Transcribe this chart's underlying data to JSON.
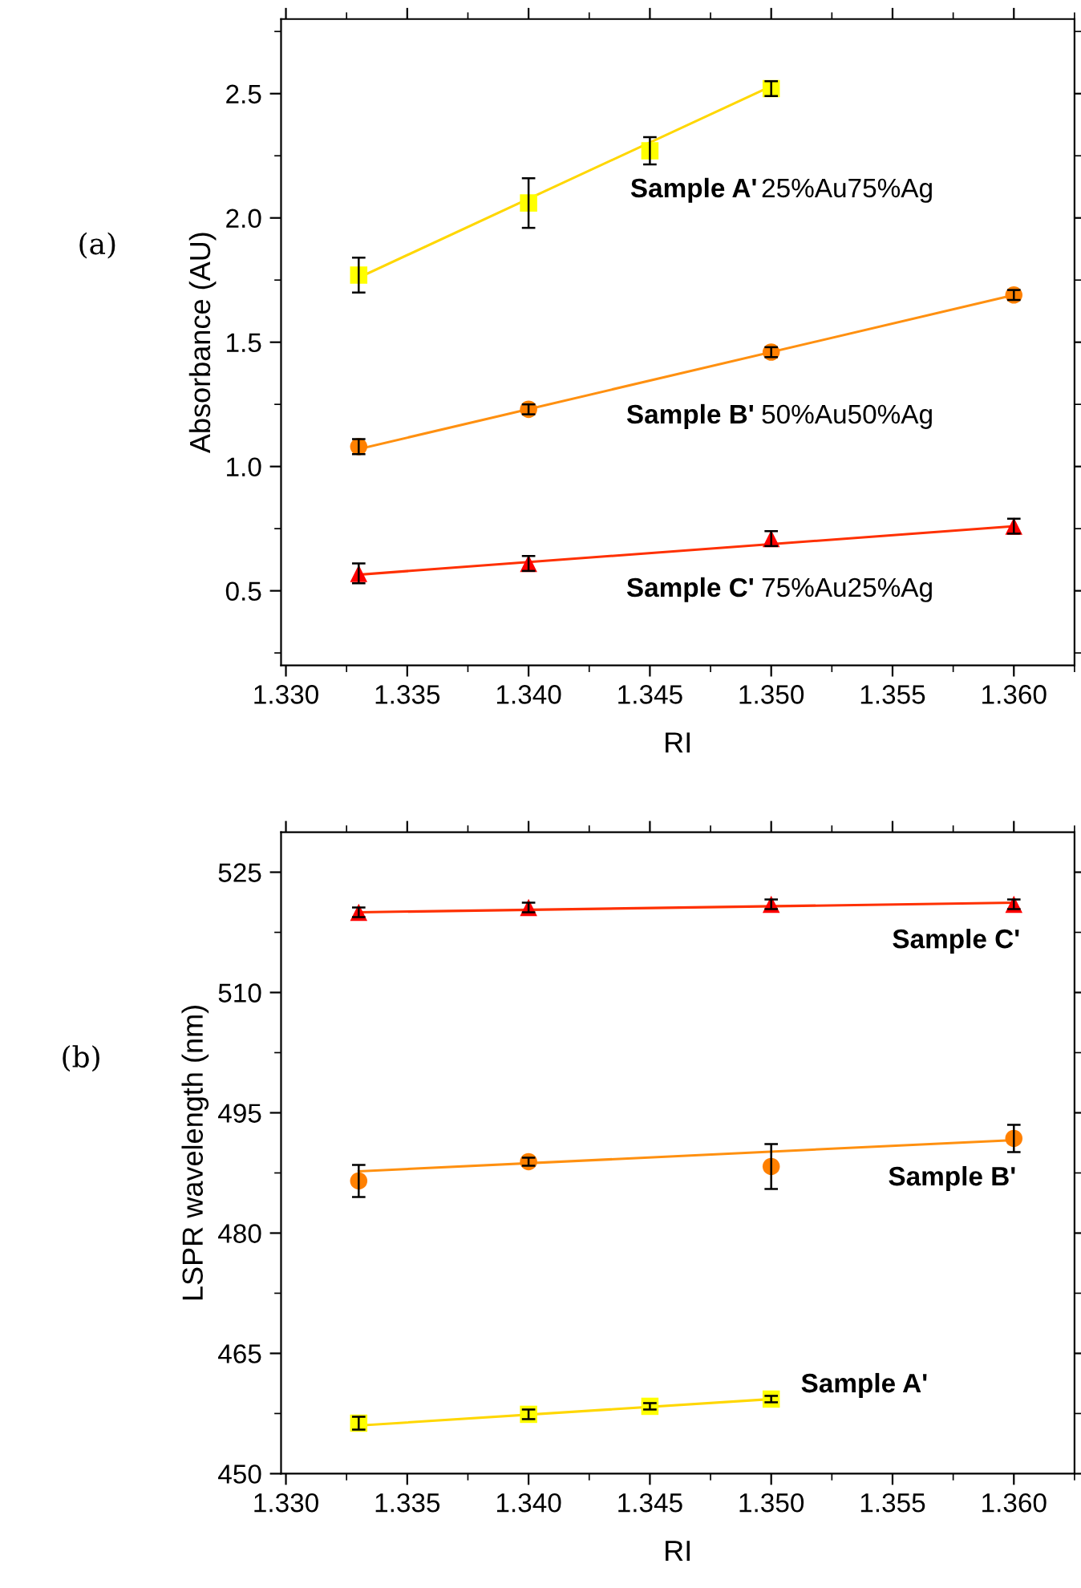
{
  "chart_data": [
    {
      "type": "scatter",
      "xlabel": "RI",
      "ylabel": "Absorbance (AU)",
      "xlim": [
        1.3298,
        1.3625
      ],
      "ylim": [
        0.2,
        2.8
      ],
      "xticks": [
        {
          "value": 1.33,
          "label": "1.330"
        },
        {
          "value": 1.335,
          "label": "1.335"
        },
        {
          "value": 1.34,
          "label": "1.340"
        },
        {
          "value": 1.345,
          "label": "1.345"
        },
        {
          "value": 1.35,
          "label": "1.350"
        },
        {
          "value": 1.355,
          "label": "1.355"
        },
        {
          "value": 1.36,
          "label": "1.360"
        }
      ],
      "yticks": [
        0.5,
        {
          "value": 1,
          "label": "1.0"
        },
        1.5,
        {
          "value": 2,
          "label": "2.0"
        },
        2.5
      ],
      "grid": false,
      "legend": false,
      "annotations": [
        "(a)",
        "25%Au75%Ag",
        "50%Au50%Ag",
        "75%Au25%Ag"
      ],
      "series": [
        {
          "name": "Sample A'",
          "marker": "square",
          "color": "#ffff00",
          "x": [
            1.333,
            1.34,
            1.345,
            1.35
          ],
          "values": [
            1.77,
            2.06,
            2.27,
            2.52
          ],
          "errors": [
            0.07,
            0.1,
            0.055,
            0.03
          ]
        },
        {
          "name": "Sample B'",
          "marker": "circle",
          "color": "#ff8000",
          "x": [
            1.333,
            1.34,
            1.35,
            1.36
          ],
          "values": [
            1.08,
            1.23,
            1.46,
            1.69
          ],
          "errors": [
            0.03,
            0.02,
            0.02,
            0.02
          ]
        },
        {
          "name": "Sample C'",
          "marker": "triangle",
          "color": "#ff0000",
          "x": [
            1.333,
            1.34,
            1.35,
            1.36
          ],
          "values": [
            0.57,
            0.61,
            0.71,
            0.76
          ],
          "errors": [
            0.04,
            0.03,
            0.03,
            0.03
          ]
        },
        {
          "type": "line",
          "color": "#ffd700",
          "x": [
            1.333,
            1.35
          ],
          "values": [
            1.76,
            2.53
          ]
        },
        {
          "type": "line",
          "color": "#ff9010",
          "x": [
            1.333,
            1.36
          ],
          "values": [
            1.07,
            1.69
          ]
        },
        {
          "type": "line",
          "color": "#ff3000",
          "x": [
            1.333,
            1.36
          ],
          "values": [
            0.565,
            0.76
          ]
        }
      ]
    },
    {
      "type": "scatter",
      "xlabel": "RI",
      "ylabel": "LSPR wavelength (nm)",
      "xlim": [
        1.3298,
        1.3625
      ],
      "ylim": [
        450,
        530
      ],
      "xticks": [
        {
          "value": 1.33,
          "label": "1.330"
        },
        {
          "value": 1.335,
          "label": "1.335"
        },
        {
          "value": 1.34,
          "label": "1.340"
        },
        {
          "value": 1.345,
          "label": "1.345"
        },
        {
          "value": 1.35,
          "label": "1.350"
        },
        {
          "value": 1.355,
          "label": "1.355"
        },
        {
          "value": 1.36,
          "label": "1.360"
        }
      ],
      "yticks": [
        450,
        465,
        480,
        495,
        510,
        525
      ],
      "grid": false,
      "legend": false,
      "annotations": [
        "(b)"
      ],
      "series": [
        {
          "name": "Sample C'",
          "marker": "triangle",
          "color": "#ff0000",
          "x": [
            1.333,
            1.34,
            1.35,
            1.36
          ],
          "values": [
            520.0,
            520.6,
            521.0,
            521.0
          ],
          "errors": [
            0.6,
            0.6,
            0.6,
            0.6
          ]
        },
        {
          "name": "Sample B'",
          "marker": "circle",
          "color": "#ff8000",
          "x": [
            1.333,
            1.34,
            1.35,
            1.36
          ],
          "values": [
            486.5,
            488.9,
            488.3,
            491.8
          ],
          "errors": [
            2.0,
            0.5,
            2.8,
            1.7
          ]
        },
        {
          "name": "Sample A'",
          "marker": "square",
          "color": "#ffff00",
          "x": [
            1.333,
            1.34,
            1.345,
            1.35
          ],
          "values": [
            456.3,
            457.4,
            458.4,
            459.3
          ],
          "errors": [
            0.8,
            0.6,
            0.4,
            0.4
          ]
        },
        {
          "type": "line",
          "color": "#ff3000",
          "x": [
            1.333,
            1.36
          ],
          "values": [
            520.0,
            521.2
          ]
        },
        {
          "type": "line",
          "color": "#ff9010",
          "x": [
            1.333,
            1.36
          ],
          "values": [
            487.7,
            491.6
          ]
        },
        {
          "type": "line",
          "color": "#ffd700",
          "x": [
            1.333,
            1.35
          ],
          "values": [
            456.0,
            459.3
          ]
        }
      ]
    }
  ]
}
